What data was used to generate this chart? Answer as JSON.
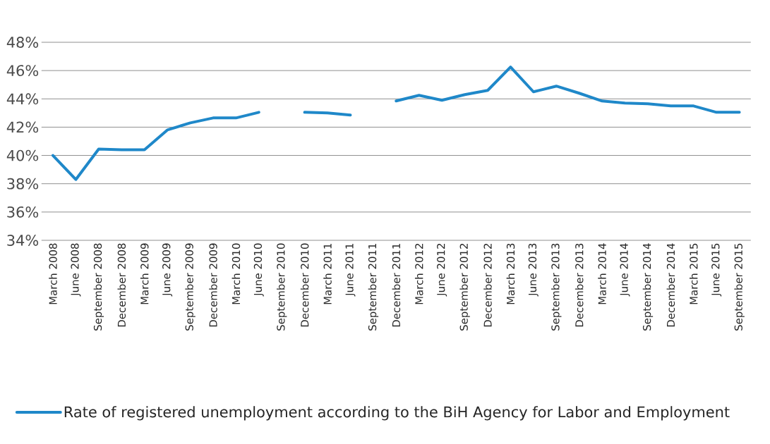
{
  "chart_data": {
    "type": "line",
    "categories": [
      "March 2008",
      "June 2008",
      "September 2008",
      "December 2008",
      "March 2009",
      "June 2009",
      "September 2009",
      "December 2009",
      "March 2010",
      "June 2010",
      "September 2010",
      "December 2010",
      "March 2011",
      "June 2011",
      "September 2011",
      "December 2011",
      "March 2012",
      "June 2012",
      "September 2012",
      "December 2012",
      "March 2013",
      "June 2013",
      "September 2013",
      "December 2013",
      "March 2014",
      "June 2014",
      "September 2014",
      "December 2014",
      "March 2015",
      "June 2015",
      "September 2015"
    ],
    "series": [
      {
        "name": "Rate of registered unemployment according to the BiH Agency for Labor and Employment",
        "color": "#1f88c9",
        "values": [
          40.0,
          38.3,
          40.45,
          40.4,
          40.4,
          41.8,
          42.3,
          42.65,
          42.65,
          43.05,
          null,
          43.05,
          43.0,
          42.85,
          null,
          43.85,
          44.25,
          43.9,
          44.3,
          44.6,
          46.25,
          44.5,
          44.9,
          44.4,
          43.85,
          43.7,
          43.65,
          43.5,
          43.5,
          43.05,
          43.05
        ]
      }
    ],
    "ylim": [
      34,
      48
    ],
    "yticks": [
      {
        "value": 34,
        "label": "34%"
      },
      {
        "value": 36,
        "label": "36%"
      },
      {
        "value": 38,
        "label": "38%"
      },
      {
        "value": 40,
        "label": "40%"
      },
      {
        "value": 42,
        "label": "42%"
      },
      {
        "value": 44,
        "label": "44%"
      },
      {
        "value": 46,
        "label": "46%"
      },
      {
        "value": 48,
        "label": "48%"
      }
    ],
    "grid": "y",
    "legend": "bottom",
    "marker": "none",
    "line_style": "solid"
  }
}
